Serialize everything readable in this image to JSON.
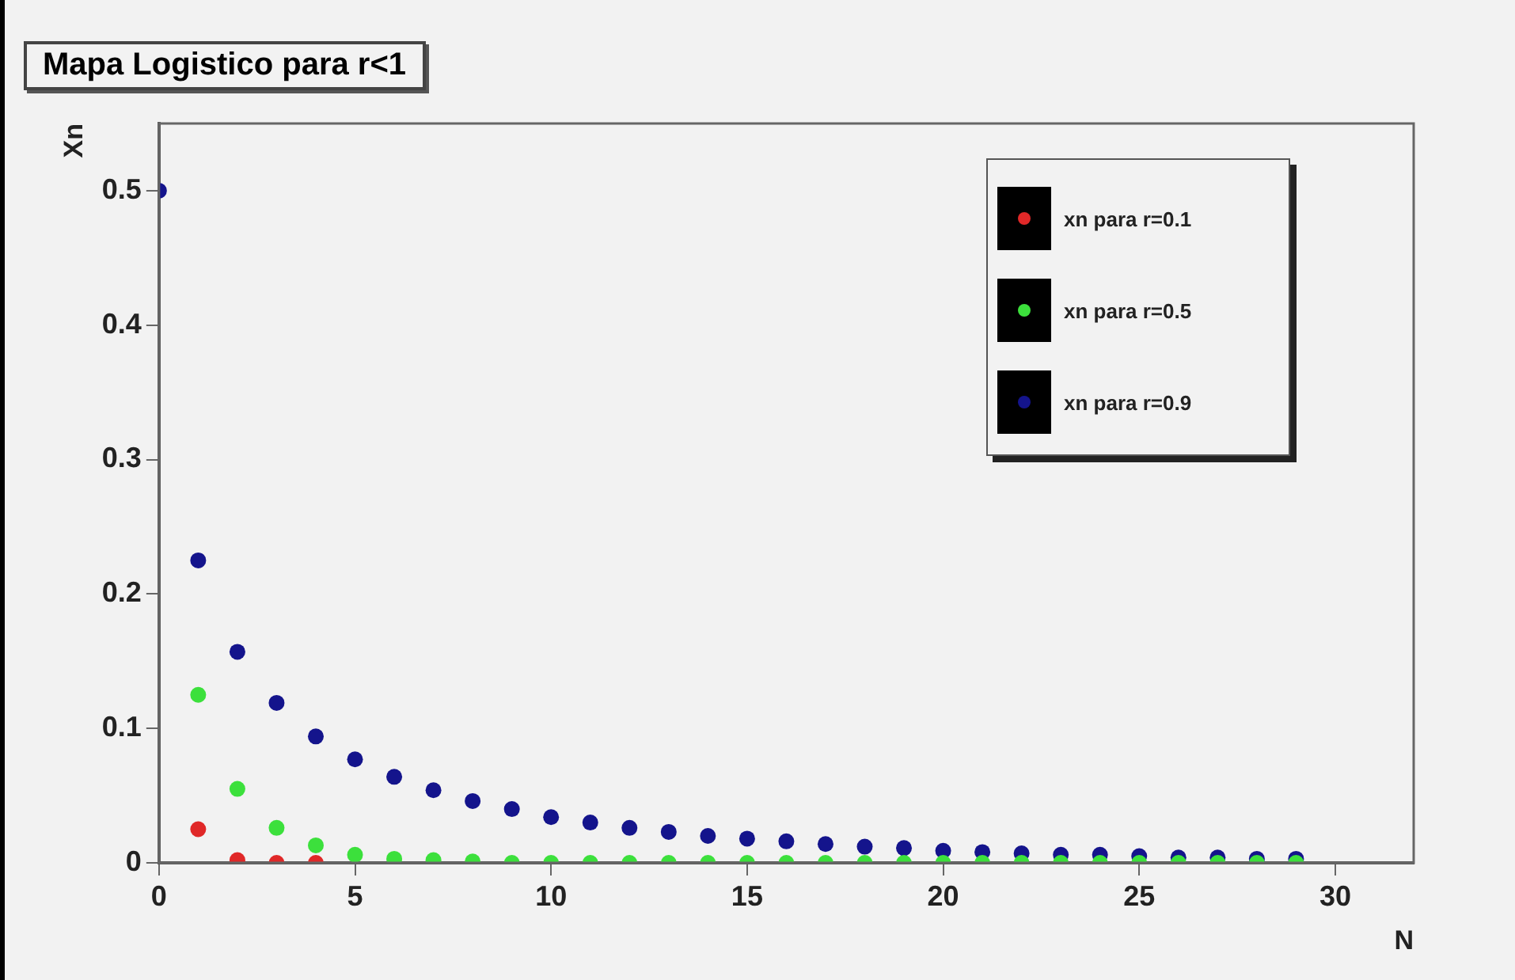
{
  "chart_data": {
    "type": "scatter",
    "title": "Mapa Logistico para r<1",
    "xlabel": "N",
    "ylabel": "Xn",
    "x": [
      0,
      1,
      2,
      3,
      4,
      5,
      6,
      7,
      8,
      9,
      10,
      11,
      12,
      13,
      14,
      15,
      16,
      17,
      18,
      19,
      20,
      21,
      22,
      23,
      24,
      25,
      26,
      27,
      28,
      29
    ],
    "series": [
      {
        "name": "xn para r=0.1",
        "color": "#e02828",
        "values": [
          null,
          0.025,
          0.002,
          0,
          0,
          null,
          null,
          null,
          null,
          null,
          null,
          null,
          null,
          null,
          null,
          null,
          null,
          null,
          null,
          null,
          null,
          null,
          null,
          null,
          null,
          null,
          null,
          null,
          null,
          null
        ]
      },
      {
        "name": "xn para r=0.5",
        "color": "#3ce03c",
        "values": [
          null,
          0.125,
          0.055,
          0.026,
          0.013,
          0.006,
          0.003,
          0.002,
          0.001,
          0,
          0,
          0,
          0,
          0,
          0,
          0,
          0,
          0,
          0,
          0,
          0,
          0,
          0,
          0,
          0,
          0,
          0,
          0,
          0,
          0
        ]
      },
      {
        "name": "xn para r=0.9",
        "color": "#14148c",
        "values": [
          0.5,
          0.225,
          0.157,
          0.119,
          0.094,
          0.077,
          0.064,
          0.054,
          0.046,
          0.04,
          0.034,
          0.03,
          0.026,
          0.023,
          0.02,
          0.018,
          0.016,
          0.014,
          0.012,
          0.011,
          0.009,
          0.008,
          0.007,
          0.006,
          0.006,
          0.005,
          0.004,
          0.004,
          0.003,
          0.003
        ]
      }
    ],
    "xlim": [
      0,
      32
    ],
    "xticks": [
      0,
      5,
      10,
      15,
      20,
      25,
      30
    ],
    "ylim": [
      0,
      0.55
    ],
    "yticks": [
      0,
      0.1,
      0.2,
      0.3,
      0.4,
      0.5
    ],
    "grid": false,
    "legend": "top right",
    "marker": "circle"
  }
}
